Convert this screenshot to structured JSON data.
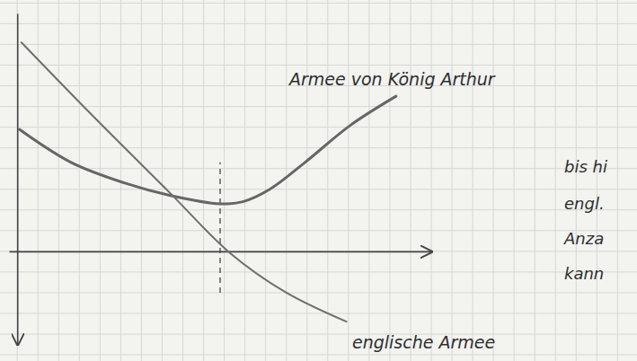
{
  "chart_data": {
    "type": "line",
    "tick_labels": false,
    "xlim": [
      -0.4,
      20
    ],
    "ylim": [
      -4.5,
      11.5
    ],
    "series": [
      {
        "name": "Armee von König Arthur",
        "color": "#666666",
        "x": [
          0.1,
          2.6,
          5.2,
          7.4,
          9.8,
          10.9,
          12.2,
          13.9,
          16.1,
          18.3
        ],
        "values": [
          5.9,
          4.3,
          3.3,
          2.7,
          2.3,
          2.4,
          3.0,
          4.3,
          6.1,
          7.5
        ]
      },
      {
        "name": "englische Armee",
        "color": "#6e6e6e",
        "x": [
          0.2,
          3.5,
          7.4,
          10.3,
          13.0,
          15.9
        ],
        "values": [
          10.1,
          6.7,
          2.8,
          -0.1,
          -2.0,
          -3.4
        ]
      }
    ],
    "vlines": [
      {
        "x": 9.8,
        "y": [
          -2,
          4.3
        ],
        "line_style": "dashed"
      }
    ],
    "annotations": [
      "bis hi",
      "engl.",
      "Anza",
      "kann"
    ]
  }
}
